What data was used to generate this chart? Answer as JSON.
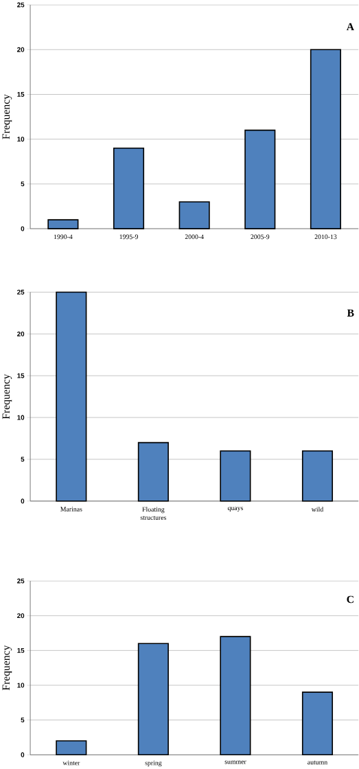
{
  "chart_data": [
    {
      "type": "bar",
      "ylabel": "Frequency",
      "categories": [
        "1990-4",
        "1995-9",
        "2000-4",
        "2005-9",
        "2010-13"
      ],
      "values": [
        1,
        9,
        3,
        11,
        20
      ],
      "color": "#4f81bd",
      "ylim": [
        0,
        25
      ],
      "yticks": [
        0,
        5,
        10,
        15,
        20,
        25
      ],
      "grid": "y",
      "annotations": [
        "A"
      ]
    },
    {
      "type": "bar",
      "ylabel": "Frequency",
      "categories": [
        "Marinas",
        "Floating structures",
        "quays",
        "wild"
      ],
      "values": [
        25,
        7,
        6,
        6
      ],
      "color": "#4f81bd",
      "ylim": [
        0,
        25
      ],
      "yticks": [
        0,
        5,
        10,
        15,
        20,
        25
      ],
      "grid": "y",
      "annotations": [
        "B"
      ]
    },
    {
      "type": "bar",
      "ylabel": "Frequency",
      "categories": [
        "winter",
        "spring",
        "summer",
        "autumn"
      ],
      "values": [
        2,
        16,
        17,
        9
      ],
      "color": "#4f81bd",
      "ylim": [
        0,
        25
      ],
      "yticks": [
        0,
        5,
        10,
        15,
        20,
        25
      ],
      "grid": "y",
      "annotations": [
        "C"
      ]
    }
  ]
}
